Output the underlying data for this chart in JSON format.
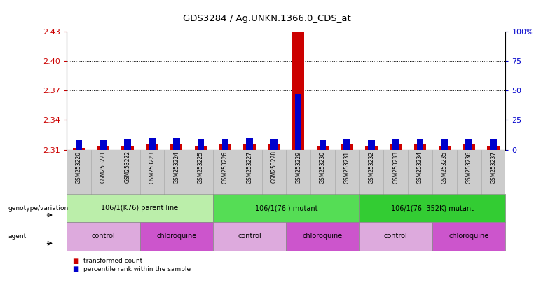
{
  "title": "GDS3284 / Ag.UNKN.1366.0_CDS_at",
  "samples": [
    "GSM253220",
    "GSM253221",
    "GSM253222",
    "GSM253223",
    "GSM253224",
    "GSM253225",
    "GSM253226",
    "GSM253227",
    "GSM253228",
    "GSM253229",
    "GSM253230",
    "GSM253231",
    "GSM253232",
    "GSM253233",
    "GSM253234",
    "GSM253235",
    "GSM253236",
    "GSM253237"
  ],
  "transformed_counts": [
    2.312,
    2.313,
    2.314,
    2.315,
    2.316,
    2.314,
    2.315,
    2.316,
    2.315,
    2.435,
    2.313,
    2.315,
    2.314,
    2.315,
    2.316,
    2.313,
    2.316,
    2.314
  ],
  "percentile_ranks": [
    8,
    8,
    9,
    10,
    10,
    9,
    9,
    10,
    9,
    47,
    8,
    9,
    8,
    9,
    9,
    9,
    9,
    9
  ],
  "ylim_left": [
    2.31,
    2.43
  ],
  "ylim_right": [
    0,
    100
  ],
  "yticks_left": [
    2.31,
    2.34,
    2.37,
    2.4,
    2.43
  ],
  "yticks_right": [
    0,
    25,
    50,
    75,
    100
  ],
  "ytick_labels_left": [
    "2.31",
    "2.34",
    "2.37",
    "2.40",
    "2.43"
  ],
  "ytick_labels_right": [
    "0",
    "25",
    "50",
    "75",
    "100%"
  ],
  "bar_color": "#cc0000",
  "percentile_color": "#0000cc",
  "genotype_groups": [
    {
      "label": "106/1(K76) parent line",
      "start": 0,
      "end": 5,
      "color": "#bbeeaa"
    },
    {
      "label": "106/1(76I) mutant",
      "start": 6,
      "end": 11,
      "color": "#55dd55"
    },
    {
      "label": "106/1(76I-352K) mutant",
      "start": 12,
      "end": 17,
      "color": "#33cc33"
    }
  ],
  "agent_groups": [
    {
      "label": "control",
      "start": 0,
      "end": 2,
      "color": "#ddaadd"
    },
    {
      "label": "chloroquine",
      "start": 3,
      "end": 5,
      "color": "#cc55cc"
    },
    {
      "label": "control",
      "start": 6,
      "end": 8,
      "color": "#ddaadd"
    },
    {
      "label": "chloroquine",
      "start": 9,
      "end": 11,
      "color": "#cc55cc"
    },
    {
      "label": "control",
      "start": 12,
      "end": 14,
      "color": "#ddaadd"
    },
    {
      "label": "chloroquine",
      "start": 15,
      "end": 17,
      "color": "#cc55cc"
    }
  ],
  "legend_items": [
    {
      "label": "transformed count",
      "color": "#cc0000"
    },
    {
      "label": "percentile rank within the sample",
      "color": "#0000cc"
    }
  ],
  "background_color": "#ffffff",
  "axis_label_color_left": "#cc0000",
  "axis_label_color_right": "#0000cc"
}
